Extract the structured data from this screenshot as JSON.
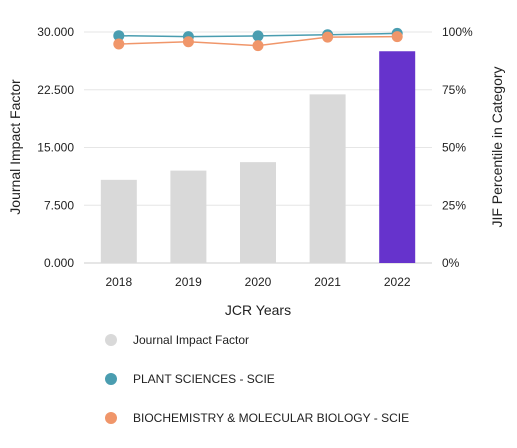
{
  "chart_data": {
    "type": "bar",
    "categories": [
      "2018",
      "2019",
      "2020",
      "2021",
      "2022"
    ],
    "xlabel": "JCR Years",
    "ylabel": "Journal Impact Factor",
    "y2label": "JIF Percentile in Category",
    "ylim": [
      0,
      30
    ],
    "y2lim": [
      0,
      100
    ],
    "y_ticks": [
      "0.000",
      "7.500",
      "15.000",
      "22.500",
      "30.000"
    ],
    "y2_ticks": [
      "0%",
      "25%",
      "50%",
      "75%",
      "100%"
    ],
    "grid": true,
    "legend_position": "bottom",
    "bars": {
      "name": "Journal Impact Factor",
      "values": [
        10.8,
        12.0,
        13.1,
        21.9,
        27.5
      ],
      "color": "#d9d9d9",
      "highlight_color": "#6633cc",
      "highlight_index": 4
    },
    "series": [
      {
        "name": "PLANT SCIENCES - SCIE",
        "axis": "right",
        "values": [
          98.4,
          98.0,
          98.3,
          98.8,
          99.4
        ],
        "color": "#4a9db0"
      },
      {
        "name": "BIOCHEMISTRY & MOLECULAR BIOLOGY - SCIE",
        "axis": "right",
        "values": [
          94.8,
          95.8,
          94.1,
          97.8,
          98.0
        ],
        "color": "#f0966a"
      }
    ]
  }
}
